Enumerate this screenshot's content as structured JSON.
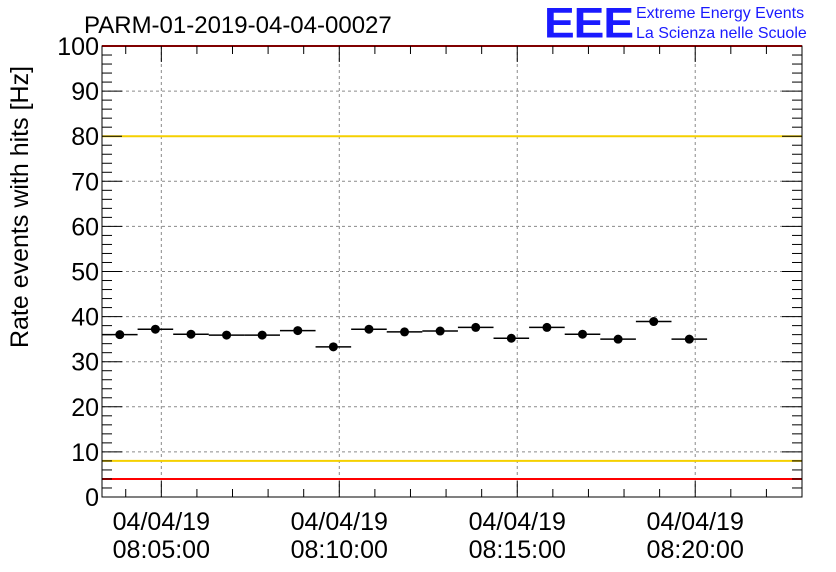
{
  "colors": {
    "red_limit": "#ff0000",
    "yellow_limit": "#f5d000",
    "points": "#000000",
    "logo": "#1a1aff",
    "grid": "#8a8a8a"
  },
  "logo": {
    "mark": "EEE",
    "line1": "Extreme Energy Events",
    "line2": "La Scienza nelle Scuole"
  },
  "chart_data": {
    "type": "scatter",
    "title": "PARM-01-2019-04-04-00027",
    "xlabel": "",
    "ylabel": "Rate events with hits [Hz]",
    "ylim": [
      0,
      100
    ],
    "yticks": [
      "0",
      "10",
      "20",
      "30",
      "40",
      "50",
      "60",
      "70",
      "80",
      "90",
      "100"
    ],
    "xlim": [
      "08:03:20",
      "08:23:00"
    ],
    "xticks": [
      {
        "date": "04/04/19",
        "time": "08:05:00"
      },
      {
        "date": "04/04/19",
        "time": "08:10:00"
      },
      {
        "date": "04/04/19",
        "time": "08:15:00"
      },
      {
        "date": "04/04/19",
        "time": "08:20:00"
      }
    ],
    "grid": true,
    "bin_width_s": 60,
    "reference_lines": [
      {
        "y": 4,
        "color": "#ff0000"
      },
      {
        "y": 8,
        "color": "#f5d000"
      },
      {
        "y": 80,
        "color": "#f5d000"
      },
      {
        "y": 100,
        "color": "#ff0000"
      }
    ],
    "points": [
      {
        "x": "08:03:50",
        "y": 36.0
      },
      {
        "x": "08:04:50",
        "y": 37.2
      },
      {
        "x": "08:05:50",
        "y": 36.1
      },
      {
        "x": "08:06:50",
        "y": 35.9
      },
      {
        "x": "08:07:50",
        "y": 35.9
      },
      {
        "x": "08:08:50",
        "y": 36.9
      },
      {
        "x": "08:09:50",
        "y": 33.3
      },
      {
        "x": "08:10:50",
        "y": 37.2
      },
      {
        "x": "08:11:50",
        "y": 36.6
      },
      {
        "x": "08:12:50",
        "y": 36.8
      },
      {
        "x": "08:13:50",
        "y": 37.6
      },
      {
        "x": "08:14:50",
        "y": 35.2
      },
      {
        "x": "08:15:50",
        "y": 37.6
      },
      {
        "x": "08:16:50",
        "y": 36.1
      },
      {
        "x": "08:17:50",
        "y": 35.0
      },
      {
        "x": "08:18:50",
        "y": 38.9
      },
      {
        "x": "08:19:50",
        "y": 35.0
      }
    ]
  }
}
